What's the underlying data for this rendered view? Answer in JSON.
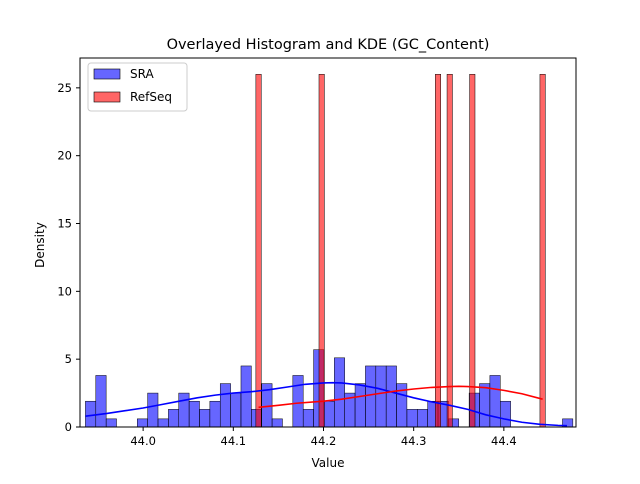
{
  "chart_data": {
    "type": "bar",
    "title": "Overlayed Histogram and KDE (GC_Content)",
    "xlabel": "Value",
    "ylabel": "Density",
    "xlim": [
      43.93,
      44.48
    ],
    "ylim": [
      0,
      27.2
    ],
    "xticks": [
      44.0,
      44.1,
      44.2,
      44.3,
      44.4
    ],
    "xtick_labels": [
      "44.0",
      "44.1",
      "44.2",
      "44.3",
      "44.4"
    ],
    "yticks": [
      0,
      5,
      10,
      15,
      20,
      25
    ],
    "ytick_labels": [
      "0",
      "5",
      "10",
      "15",
      "20",
      "25"
    ],
    "legend": {
      "position": "top-left",
      "entries": [
        "SRA",
        "RefSeq"
      ]
    },
    "grid": false,
    "series": [
      {
        "name": "SRA",
        "kind": "histogram",
        "color": "#0000ff",
        "bins_start": 43.936,
        "bin_width": 0.0115,
        "values": [
          1.9,
          3.8,
          0.6,
          0,
          0,
          0.6,
          2.5,
          0.6,
          1.3,
          2.5,
          1.9,
          1.3,
          1.9,
          3.2,
          2.5,
          4.5,
          1.3,
          3.2,
          0.6,
          0,
          3.8,
          1.3,
          5.7,
          1.9,
          5.1,
          2.5,
          3.2,
          4.5,
          4.5,
          4.5,
          3.2,
          1.3,
          1.3,
          1.9,
          1.9,
          0.6,
          0,
          2.5,
          3.2,
          3.8,
          1.9,
          0,
          0,
          0,
          0,
          0,
          0.6
        ]
      },
      {
        "name": "RefSeq",
        "kind": "histogram",
        "color": "#ff0000",
        "bars": [
          {
            "x": 44.128,
            "y": 26.0
          },
          {
            "x": 44.198,
            "y": 26.0
          },
          {
            "x": 44.327,
            "y": 26.0
          },
          {
            "x": 44.34,
            "y": 26.0
          },
          {
            "x": 44.365,
            "y": 26.0
          },
          {
            "x": 44.443,
            "y": 26.0
          }
        ],
        "bar_width": 0.006
      },
      {
        "name": "SRA",
        "kind": "kde",
        "color": "#0000ff",
        "x": [
          43.936,
          43.96,
          43.98,
          44.0,
          44.02,
          44.04,
          44.06,
          44.08,
          44.1,
          44.12,
          44.14,
          44.16,
          44.18,
          44.2,
          44.21,
          44.22,
          44.24,
          44.26,
          44.28,
          44.3,
          44.32,
          44.34,
          44.36,
          44.38,
          44.4,
          44.42,
          44.44,
          44.46,
          44.47
        ],
        "y": [
          0.8,
          1.0,
          1.2,
          1.4,
          1.65,
          1.9,
          2.15,
          2.35,
          2.5,
          2.6,
          2.75,
          2.95,
          3.15,
          3.25,
          3.27,
          3.25,
          3.1,
          2.85,
          2.5,
          2.15,
          1.85,
          1.6,
          1.3,
          0.9,
          0.6,
          0.35,
          0.2,
          0.12,
          0.1
        ]
      },
      {
        "name": "RefSeq",
        "kind": "kde",
        "color": "#ff0000",
        "x": [
          44.128,
          44.15,
          44.17,
          44.2,
          44.22,
          44.24,
          44.26,
          44.28,
          44.3,
          44.32,
          44.34,
          44.35,
          44.36,
          44.38,
          44.4,
          44.42,
          44.443
        ],
        "y": [
          1.45,
          1.6,
          1.75,
          1.9,
          2.05,
          2.25,
          2.45,
          2.65,
          2.8,
          2.92,
          2.98,
          3.0,
          2.98,
          2.9,
          2.7,
          2.45,
          2.05
        ]
      }
    ]
  }
}
